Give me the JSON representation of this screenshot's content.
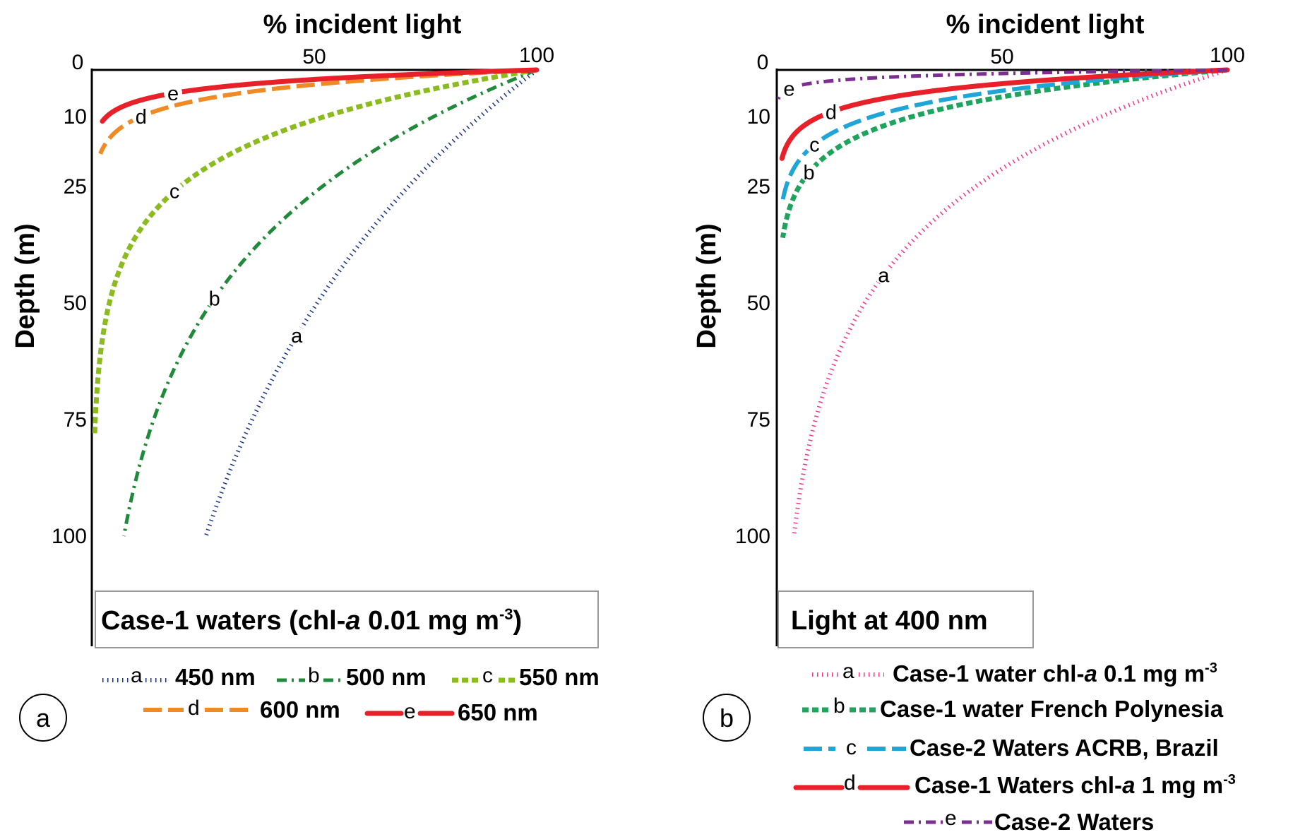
{
  "colors": {
    "navy": "#1a3288",
    "darkgreen": "#1f8a3a",
    "lime": "#8bbb1f",
    "orange": "#f08a24",
    "red": "#e8202a",
    "pink": "#f0368e",
    "seagreen": "#1fa45e",
    "sky": "#1fa6d6",
    "purple": "#7a2f91"
  },
  "chart_data": [
    {
      "type": "line",
      "panel_letter": "a",
      "xlabel": "% incident light",
      "ylabel": "Depth (m)",
      "box_label_main": "Case-1 waters (chl-",
      "box_label_italic": "a",
      "box_label_rest": " 0.01 mg m",
      "box_label_sup": "-3",
      "box_label_close": ")",
      "xlim": [
        0,
        100
      ],
      "ylim": [
        0,
        120
      ],
      "x_ticks": [
        "0",
        "50",
        "100"
      ],
      "x_tick_values": [
        0,
        50,
        100
      ],
      "y_ticks": [
        "10",
        "25",
        "50",
        "75",
        "100"
      ],
      "y_tick_values": [
        10,
        25,
        50,
        75,
        100
      ],
      "series": [
        {
          "letter": "a",
          "name": "450 nm",
          "color": "navy",
          "dash": "dotted",
          "decay_k": 0.0136,
          "max_depth": 100,
          "label_depth": 57
        },
        {
          "letter": "b",
          "name": "500 nm",
          "color": "darkgreen",
          "dash": "dashdot",
          "decay_k": 0.0263,
          "max_depth": 100,
          "label_depth": 49
        },
        {
          "letter": "c",
          "name": "550 nm",
          "color": "lime",
          "dash": "shortdash",
          "decay_k": 0.0647,
          "max_depth": 78,
          "label_depth": 26
        },
        {
          "letter": "d",
          "name": "600 nm",
          "color": "orange",
          "dash": "longdash",
          "decay_k": 0.22,
          "max_depth": 18,
          "label_depth": 10
        },
        {
          "letter": "e",
          "name": "650 nm",
          "color": "red",
          "dash": "solid",
          "decay_k": 0.34,
          "max_depth": 11,
          "label_depth": 5
        }
      ]
    },
    {
      "type": "line",
      "panel_letter": "b",
      "xlabel": "% incident light",
      "ylabel": "Depth (m)",
      "box_label_main": "Light at 400 nm",
      "xlim": [
        0,
        100
      ],
      "ylim": [
        0,
        120
      ],
      "x_ticks": [
        "0",
        "50",
        "100"
      ],
      "x_tick_values": [
        0,
        50,
        100
      ],
      "y_ticks": [
        "10",
        "25",
        "50",
        "75",
        "100"
      ],
      "y_tick_values": [
        10,
        25,
        50,
        75,
        100
      ],
      "series": [
        {
          "letter": "a",
          "name_pre": "Case-1 water chl-",
          "name_italic": "a",
          "name_post": " 0.1 mg m",
          "name_sup": "-3",
          "color": "pink",
          "dash": "dotted",
          "decay_k": 0.0327,
          "max_depth": 100,
          "label_depth": 44
        },
        {
          "letter": "b",
          "name_pre": "Case-1 water French Polynesia",
          "color": "seagreen",
          "dash": "shortdash",
          "decay_k": 0.12,
          "max_depth": 36,
          "label_depth": 22
        },
        {
          "letter": "c",
          "name_pre": "Case-2 Waters ACRB, Brazil",
          "color": "sky",
          "dash": "longdash",
          "decay_k": 0.155,
          "max_depth": 28,
          "label_depth": 16
        },
        {
          "letter": "d",
          "name_pre": "Case-1 Waters chl-",
          "name_italic": "a",
          "name_post": " 1 mg m",
          "name_sup": "-3",
          "color": "red",
          "dash": "solid",
          "decay_k": 0.235,
          "max_depth": 19,
          "label_depth": 9
        },
        {
          "letter": "e",
          "name_pre": "Case-2 Waters",
          "color": "purple",
          "dash": "dashdot",
          "decay_k": 0.9,
          "max_depth": 7,
          "label_depth": 4
        }
      ]
    }
  ]
}
